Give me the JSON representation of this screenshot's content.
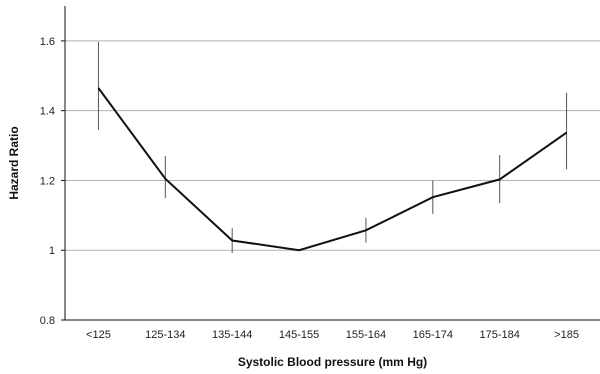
{
  "chart_data": {
    "type": "line",
    "title": "",
    "xlabel": "Systolic Blood pressure (mm Hg)",
    "ylabel": "Hazard Ratio",
    "categories": [
      "<125",
      "125-134",
      "135-144",
      "145-155",
      "155-164",
      "165-174",
      "175-184",
      ">185"
    ],
    "series": [
      {
        "values": [
          1.465,
          1.205,
          1.028,
          1.0,
          1.057,
          1.152,
          1.203,
          1.337
        ],
        "lower": [
          1.345,
          1.15,
          0.992,
          1.0,
          1.022,
          1.104,
          1.135,
          1.232
        ],
        "upper": [
          1.597,
          1.27,
          1.063,
          1.0,
          1.093,
          1.2,
          1.273,
          1.451
        ]
      }
    ],
    "ylim": [
      0.8,
      1.6
    ],
    "yticks": [
      "0.8",
      "1",
      "1.2",
      "1.4",
      "1.6"
    ],
    "grid": true,
    "line_color": "#111111",
    "grid_color": "#b3b3b3"
  }
}
